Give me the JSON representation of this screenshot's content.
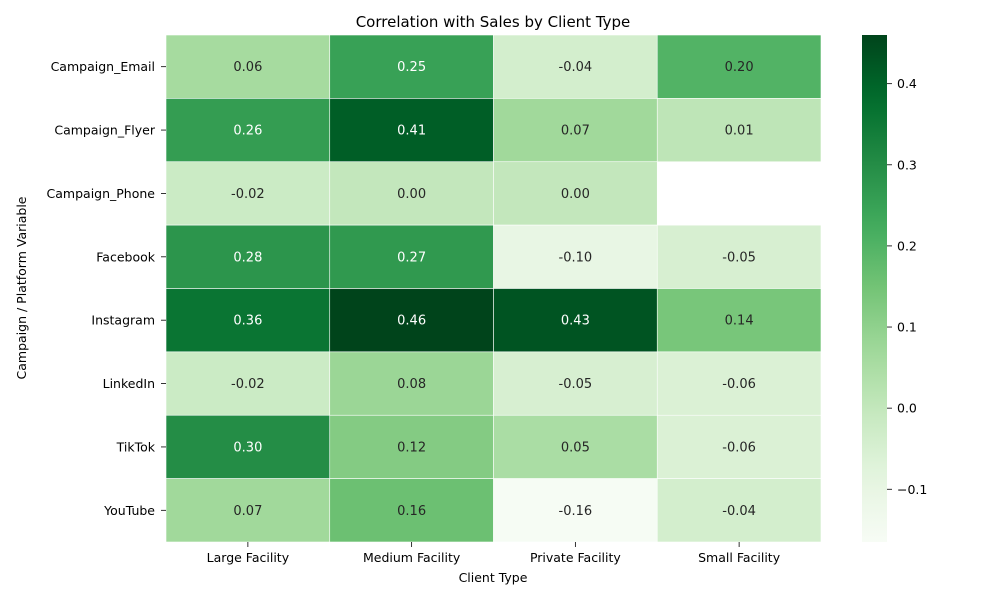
{
  "chart_data": {
    "type": "heatmap",
    "title": "Correlation with Sales by Client Type",
    "xlabel": "Client Type",
    "ylabel": "Campaign / Platform Variable",
    "columns": [
      "Large Facility",
      "Medium Facility",
      "Private Facility",
      "Small Facility"
    ],
    "rows": [
      "Campaign_Email",
      "Campaign_Flyer",
      "Campaign_Phone",
      "Facebook",
      "Instagram",
      "LinkedIn",
      "TikTok",
      "YouTube"
    ],
    "values": [
      [
        0.06,
        0.25,
        -0.04,
        0.2
      ],
      [
        0.26,
        0.41,
        0.07,
        0.01
      ],
      [
        -0.02,
        0.0,
        0.0,
        null
      ],
      [
        0.28,
        0.27,
        -0.1,
        -0.05
      ],
      [
        0.36,
        0.46,
        0.43,
        0.14
      ],
      [
        -0.02,
        0.08,
        -0.05,
        -0.06
      ],
      [
        0.3,
        0.12,
        0.05,
        -0.06
      ],
      [
        0.07,
        0.16,
        -0.16,
        -0.04
      ]
    ],
    "value_labels": [
      [
        "0.06",
        "0.25",
        "-0.04",
        "0.20"
      ],
      [
        "0.26",
        "0.41",
        "0.07",
        "0.01"
      ],
      [
        "-0.02",
        "0.00",
        "0.00",
        ""
      ],
      [
        "0.28",
        "0.27",
        "-0.10",
        "-0.05"
      ],
      [
        "0.36",
        "0.46",
        "0.43",
        "0.14"
      ],
      [
        "-0.02",
        "0.08",
        "-0.05",
        "-0.06"
      ],
      [
        "0.30",
        "0.12",
        "0.05",
        "-0.06"
      ],
      [
        "0.07",
        "0.16",
        "-0.16",
        "-0.04"
      ]
    ],
    "colormap": "Greens",
    "colorbar": {
      "vmin": -0.165,
      "vmax": 0.46,
      "ticks": [
        -0.1,
        0.0,
        0.1,
        0.2,
        0.3,
        0.4
      ],
      "tick_labels": [
        "−0.1",
        "0.0",
        "0.1",
        "0.2",
        "0.3",
        "0.4"
      ]
    },
    "grid": false,
    "legend": "colorbar-right"
  }
}
